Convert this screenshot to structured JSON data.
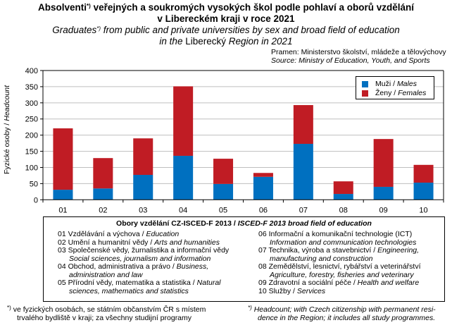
{
  "header": {
    "title_cz": "Absolventi",
    "title_cz_mark": "*)",
    "title_cz_rest": " veřejných a soukromých vysokých škol podle pohlaví a oborů vzdělání",
    "title_cz_line2": "v Libereckém kraji v roce 2021",
    "title_en_a": "Graduates",
    "title_en_mark": "*)",
    "title_en_rest": " from public and private universities by sex and broad field of education",
    "title_en_line2_a": "in the ",
    "title_en_line2_b": "Liberecký",
    "title_en_line2_c": " Region in 2021",
    "source_cz": "Pramen: Ministerstvo školství, mládeže a tělovýchovy",
    "source_en": "Source: Ministry of Education, Youth, and Sports"
  },
  "colors": {
    "males": "#0070C0",
    "females": "#C01C24",
    "grid": "#BFBFBF"
  },
  "chart_data": {
    "type": "bar",
    "stacked": true,
    "categories": [
      "01",
      "02",
      "03",
      "04",
      "05",
      "06",
      "07",
      "08",
      "09",
      "10"
    ],
    "series": [
      {
        "name": "Muži / Males",
        "name_cz": "Muži",
        "name_en": "Males",
        "values": [
          31,
          35,
          77,
          136,
          49,
          71,
          173,
          18,
          40,
          53
        ]
      },
      {
        "name": "Ženy / Females",
        "name_cz": "Ženy",
        "name_en": "Females",
        "values": [
          190,
          94,
          113,
          215,
          78,
          12,
          120,
          39,
          148,
          55
        ]
      }
    ],
    "ylabel_cz": "Fyzické osoby",
    "ylabel_en": "Headcount",
    "ylim": [
      0,
      400
    ],
    "yticks": [
      0,
      50,
      100,
      150,
      200,
      250,
      300,
      350,
      400
    ],
    "grid": true,
    "legend_position": "top-right"
  },
  "fields": {
    "heading_cz": "Obory vzdělání CZ-ISCED-F 2013 / ",
    "heading_en": "ISCED-F 2013 broad field of education",
    "left": [
      {
        "cz": "01 Vzdělávání a výchova / ",
        "en": "Education",
        "cont": ""
      },
      {
        "cz": "02 Umění a humanitní vědy / ",
        "en": "Arts and humanities",
        "cont": ""
      },
      {
        "cz": "03 Společenské vědy, žurnalistika a informační vědy",
        "en": "",
        "cont": "Social sciences, journalism and information"
      },
      {
        "cz": "04 Obchod, administrativa a právo / ",
        "en": "Business,",
        "cont": "administration and law"
      },
      {
        "cz": "05 Přírodní vědy, matematika a statistika / ",
        "en": "Natural",
        "cont": "sciences, mathematics and statistics"
      }
    ],
    "right": [
      {
        "cz": "06 Informační a komunikační technologie (ICT)",
        "en": "",
        "cont": "Information and communication technologies"
      },
      {
        "cz": "07 Technika, výroba a stavebnictví / ",
        "en": "Engineering,",
        "cont": "manufacturing and construction"
      },
      {
        "cz": "08 Zemědělství, lesnictví, rybářství a veterinářství",
        "en": "",
        "cont": "Agriculture, forestry, fisheries and veterinary"
      },
      {
        "cz": "09 Zdravotní a sociální péče / ",
        "en": "Health and welfare",
        "cont": ""
      },
      {
        "cz": "10 Služby / ",
        "en": "Services",
        "cont": ""
      }
    ]
  },
  "footnotes": {
    "mark": "*)",
    "cz_line1": "ve fyzických osobách, se státním občanstvím ČR s místem",
    "cz_line2": "trvalého bydliště v kraji; za všechny studijní programy",
    "en_line1": "Headcount; with Czech citizenship with permanent resi-",
    "en_line2": "dence in the Region; it includes all study programmes."
  }
}
